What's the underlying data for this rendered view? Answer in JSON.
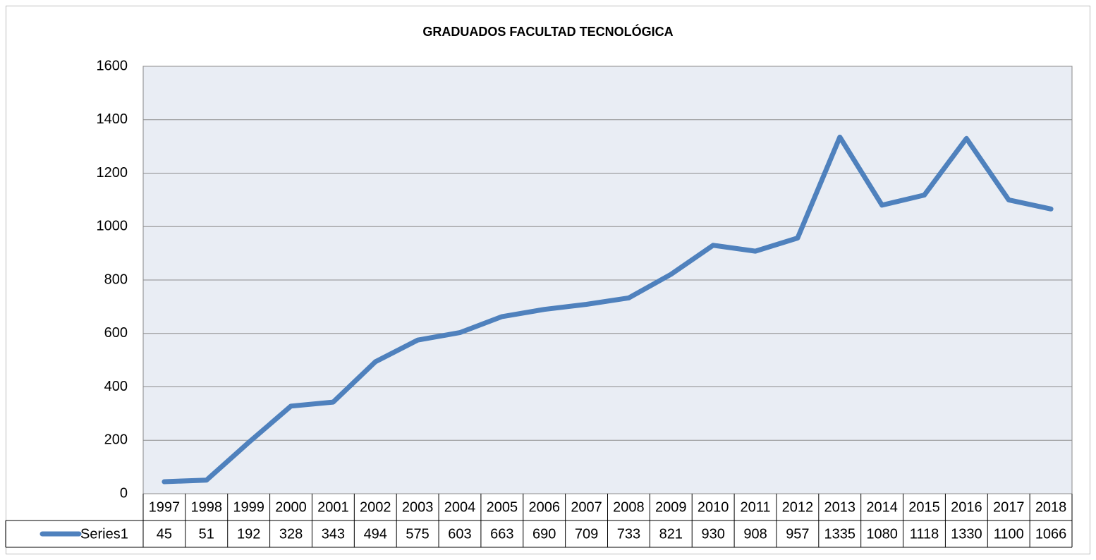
{
  "chart_data": {
    "type": "line",
    "title": "GRADUADOS FACULTAD TECNOLÓGICA",
    "categories": [
      "1997",
      "1998",
      "1999",
      "2000",
      "2001",
      "2002",
      "2003",
      "2004",
      "2005",
      "2006",
      "2007",
      "2008",
      "2009",
      "2010",
      "2011",
      "2012",
      "2013",
      "2014",
      "2015",
      "2016",
      "2017",
      "2018"
    ],
    "series": [
      {
        "name": "Series1",
        "color": "#4f81bd",
        "values": [
          45,
          51,
          192,
          328,
          343,
          494,
          575,
          603,
          663,
          690,
          709,
          733,
          821,
          930,
          908,
          957,
          1335,
          1080,
          1118,
          1330,
          1100,
          1066
        ]
      }
    ],
    "ylim": [
      0,
      1600
    ],
    "yticks": [
      0,
      200,
      400,
      600,
      800,
      1000,
      1200,
      1400,
      1600
    ],
    "grid": true,
    "data_table": true
  }
}
